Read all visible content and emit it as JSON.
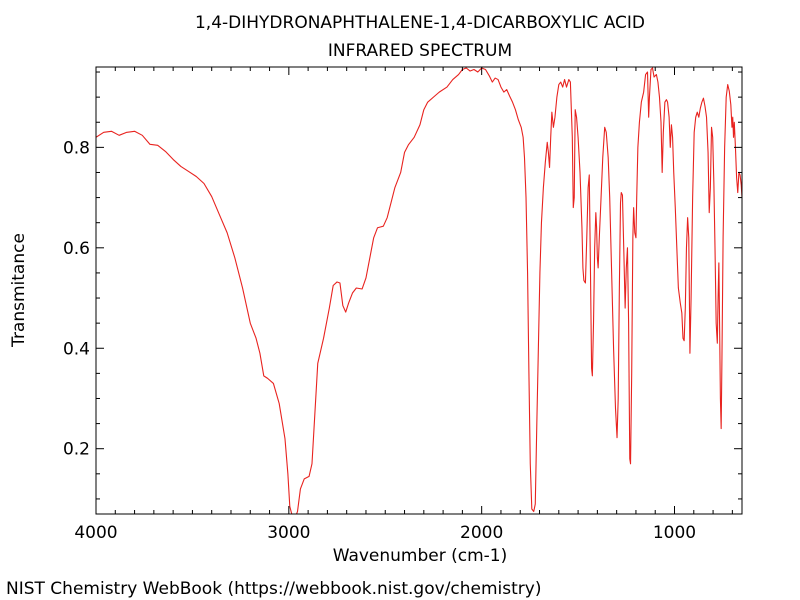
{
  "chart_data": {
    "type": "line",
    "title_lines": [
      "1,4-DIHYDRONAPHTHALENE-1,4-DICARBOXYLIC ACID",
      "INFRARED SPECTRUM"
    ],
    "xlabel": "Wavenumber (cm-1)",
    "ylabel": "Transmitance",
    "xlim": [
      4000,
      650
    ],
    "ylim": [
      0.07,
      0.96
    ],
    "x_reversed": true,
    "grid": false,
    "x_ticks": [
      {
        "value": 4000,
        "label": "4000"
      },
      {
        "value": 3000,
        "label": "3000"
      },
      {
        "value": 2000,
        "label": "2000"
      },
      {
        "value": 1000,
        "label": "1000"
      }
    ],
    "y_ticks": [
      {
        "value": 0.2,
        "label": "0.2"
      },
      {
        "value": 0.4,
        "label": "0.4"
      },
      {
        "value": 0.6,
        "label": "0.6"
      },
      {
        "value": 0.8,
        "label": "0.8"
      }
    ],
    "series": [
      {
        "color": "#e8231f",
        "points": [
          [
            4000,
            0.82
          ],
          [
            3960,
            0.83
          ],
          [
            3920,
            0.832
          ],
          [
            3880,
            0.824
          ],
          [
            3840,
            0.83
          ],
          [
            3800,
            0.832
          ],
          [
            3760,
            0.824
          ],
          [
            3720,
            0.806
          ],
          [
            3680,
            0.804
          ],
          [
            3640,
            0.792
          ],
          [
            3600,
            0.776
          ],
          [
            3560,
            0.762
          ],
          [
            3520,
            0.752
          ],
          [
            3480,
            0.742
          ],
          [
            3440,
            0.728
          ],
          [
            3400,
            0.702
          ],
          [
            3360,
            0.666
          ],
          [
            3320,
            0.63
          ],
          [
            3280,
            0.58
          ],
          [
            3240,
            0.52
          ],
          [
            3200,
            0.45
          ],
          [
            3170,
            0.42
          ],
          [
            3150,
            0.39
          ],
          [
            3130,
            0.345
          ],
          [
            3110,
            0.34
          ],
          [
            3080,
            0.33
          ],
          [
            3050,
            0.29
          ],
          [
            3020,
            0.22
          ],
          [
            3005,
            0.15
          ],
          [
            2995,
            0.085
          ],
          [
            2985,
            0.07
          ],
          [
            2970,
            0.06
          ],
          [
            2955,
            0.075
          ],
          [
            2940,
            0.12
          ],
          [
            2920,
            0.14
          ],
          [
            2895,
            0.145
          ],
          [
            2880,
            0.17
          ],
          [
            2865,
            0.27
          ],
          [
            2850,
            0.37
          ],
          [
            2820,
            0.42
          ],
          [
            2790,
            0.48
          ],
          [
            2770,
            0.525
          ],
          [
            2750,
            0.532
          ],
          [
            2735,
            0.53
          ],
          [
            2720,
            0.485
          ],
          [
            2705,
            0.472
          ],
          [
            2690,
            0.49
          ],
          [
            2670,
            0.51
          ],
          [
            2650,
            0.52
          ],
          [
            2620,
            0.518
          ],
          [
            2600,
            0.54
          ],
          [
            2580,
            0.58
          ],
          [
            2560,
            0.62
          ],
          [
            2540,
            0.64
          ],
          [
            2510,
            0.643
          ],
          [
            2490,
            0.66
          ],
          [
            2470,
            0.69
          ],
          [
            2450,
            0.72
          ],
          [
            2420,
            0.75
          ],
          [
            2400,
            0.79
          ],
          [
            2380,
            0.805
          ],
          [
            2350,
            0.82
          ],
          [
            2320,
            0.845
          ],
          [
            2300,
            0.875
          ],
          [
            2280,
            0.89
          ],
          [
            2250,
            0.9
          ],
          [
            2220,
            0.91
          ],
          [
            2180,
            0.92
          ],
          [
            2150,
            0.935
          ],
          [
            2120,
            0.945
          ],
          [
            2100,
            0.955
          ],
          [
            2080,
            0.958
          ],
          [
            2060,
            0.952
          ],
          [
            2040,
            0.955
          ],
          [
            2020,
            0.95
          ],
          [
            2000,
            0.958
          ],
          [
            1980,
            0.955
          ],
          [
            1960,
            0.942
          ],
          [
            1945,
            0.93
          ],
          [
            1930,
            0.938
          ],
          [
            1915,
            0.935
          ],
          [
            1900,
            0.92
          ],
          [
            1885,
            0.91
          ],
          [
            1870,
            0.915
          ],
          [
            1855,
            0.902
          ],
          [
            1840,
            0.89
          ],
          [
            1825,
            0.875
          ],
          [
            1810,
            0.855
          ],
          [
            1795,
            0.84
          ],
          [
            1785,
            0.82
          ],
          [
            1778,
            0.78
          ],
          [
            1770,
            0.7
          ],
          [
            1762,
            0.55
          ],
          [
            1755,
            0.35
          ],
          [
            1748,
            0.17
          ],
          [
            1740,
            0.08
          ],
          [
            1730,
            0.075
          ],
          [
            1722,
            0.09
          ],
          [
            1714,
            0.25
          ],
          [
            1706,
            0.4
          ],
          [
            1698,
            0.55
          ],
          [
            1690,
            0.65
          ],
          [
            1680,
            0.72
          ],
          [
            1670,
            0.77
          ],
          [
            1660,
            0.81
          ],
          [
            1654,
            0.79
          ],
          [
            1648,
            0.76
          ],
          [
            1642,
            0.82
          ],
          [
            1636,
            0.87
          ],
          [
            1628,
            0.84
          ],
          [
            1620,
            0.86
          ],
          [
            1610,
            0.9
          ],
          [
            1600,
            0.925
          ],
          [
            1590,
            0.93
          ],
          [
            1580,
            0.92
          ],
          [
            1570,
            0.935
          ],
          [
            1560,
            0.92
          ],
          [
            1548,
            0.935
          ],
          [
            1540,
            0.93
          ],
          [
            1530,
            0.82
          ],
          [
            1525,
            0.68
          ],
          [
            1520,
            0.7
          ],
          [
            1515,
            0.875
          ],
          [
            1508,
            0.86
          ],
          [
            1500,
            0.82
          ],
          [
            1490,
            0.75
          ],
          [
            1480,
            0.64
          ],
          [
            1475,
            0.56
          ],
          [
            1470,
            0.535
          ],
          [
            1462,
            0.53
          ],
          [
            1455,
            0.62
          ],
          [
            1448,
            0.72
          ],
          [
            1442,
            0.745
          ],
          [
            1436,
            0.56
          ],
          [
            1430,
            0.36
          ],
          [
            1426,
            0.345
          ],
          [
            1420,
            0.45
          ],
          [
            1414,
            0.6
          ],
          [
            1408,
            0.67
          ],
          [
            1404,
            0.64
          ],
          [
            1400,
            0.58
          ],
          [
            1396,
            0.56
          ],
          [
            1390,
            0.62
          ],
          [
            1382,
            0.69
          ],
          [
            1372,
            0.78
          ],
          [
            1362,
            0.84
          ],
          [
            1354,
            0.83
          ],
          [
            1344,
            0.78
          ],
          [
            1336,
            0.7
          ],
          [
            1326,
            0.55
          ],
          [
            1316,
            0.4
          ],
          [
            1306,
            0.28
          ],
          [
            1298,
            0.222
          ],
          [
            1292,
            0.3
          ],
          [
            1286,
            0.52
          ],
          [
            1280,
            0.69
          ],
          [
            1276,
            0.71
          ],
          [
            1270,
            0.705
          ],
          [
            1262,
            0.58
          ],
          [
            1256,
            0.48
          ],
          [
            1250,
            0.56
          ],
          [
            1244,
            0.6
          ],
          [
            1238,
            0.45
          ],
          [
            1232,
            0.18
          ],
          [
            1228,
            0.17
          ],
          [
            1222,
            0.35
          ],
          [
            1216,
            0.62
          ],
          [
            1212,
            0.68
          ],
          [
            1206,
            0.63
          ],
          [
            1200,
            0.62
          ],
          [
            1196,
            0.7
          ],
          [
            1190,
            0.8
          ],
          [
            1182,
            0.85
          ],
          [
            1172,
            0.89
          ],
          [
            1160,
            0.91
          ],
          [
            1150,
            0.945
          ],
          [
            1140,
            0.95
          ],
          [
            1134,
            0.86
          ],
          [
            1130,
            0.9
          ],
          [
            1122,
            0.955
          ],
          [
            1114,
            0.958
          ],
          [
            1106,
            0.94
          ],
          [
            1094,
            0.945
          ],
          [
            1086,
            0.93
          ],
          [
            1078,
            0.9
          ],
          [
            1070,
            0.85
          ],
          [
            1064,
            0.75
          ],
          [
            1058,
            0.83
          ],
          [
            1050,
            0.89
          ],
          [
            1042,
            0.895
          ],
          [
            1036,
            0.89
          ],
          [
            1028,
            0.86
          ],
          [
            1022,
            0.8
          ],
          [
            1016,
            0.845
          ],
          [
            1010,
            0.82
          ],
          [
            1004,
            0.75
          ],
          [
            996,
            0.68
          ],
          [
            988,
            0.6
          ],
          [
            980,
            0.52
          ],
          [
            970,
            0.49
          ],
          [
            962,
            0.47
          ],
          [
            956,
            0.42
          ],
          [
            950,
            0.415
          ],
          [
            944,
            0.48
          ],
          [
            938,
            0.6
          ],
          [
            932,
            0.66
          ],
          [
            926,
            0.62
          ],
          [
            920,
            0.39
          ],
          [
            914,
            0.5
          ],
          [
            906,
            0.7
          ],
          [
            898,
            0.83
          ],
          [
            890,
            0.86
          ],
          [
            882,
            0.87
          ],
          [
            874,
            0.86
          ],
          [
            866,
            0.878
          ],
          [
            858,
            0.89
          ],
          [
            850,
            0.898
          ],
          [
            842,
            0.882
          ],
          [
            834,
            0.86
          ],
          [
            826,
            0.79
          ],
          [
            820,
            0.67
          ],
          [
            814,
            0.72
          ],
          [
            808,
            0.84
          ],
          [
            802,
            0.82
          ],
          [
            796,
            0.73
          ],
          [
            790,
            0.6
          ],
          [
            784,
            0.45
          ],
          [
            778,
            0.41
          ],
          [
            774,
            0.5
          ],
          [
            770,
            0.57
          ],
          [
            766,
            0.44
          ],
          [
            762,
            0.3
          ],
          [
            758,
            0.24
          ],
          [
            754,
            0.38
          ],
          [
            748,
            0.62
          ],
          [
            740,
            0.8
          ],
          [
            732,
            0.9
          ],
          [
            724,
            0.925
          ],
          [
            716,
            0.912
          ],
          [
            708,
            0.885
          ],
          [
            702,
            0.84
          ],
          [
            698,
            0.86
          ],
          [
            694,
            0.82
          ],
          [
            690,
            0.85
          ],
          [
            684,
            0.8
          ],
          [
            678,
            0.74
          ],
          [
            672,
            0.71
          ],
          [
            666,
            0.75
          ],
          [
            660,
            0.745
          ],
          [
            654,
            0.725
          ],
          [
            650,
            0.7
          ]
        ]
      }
    ]
  },
  "footer": "NIST Chemistry WebBook (https://webbook.nist.gov/chemistry)"
}
